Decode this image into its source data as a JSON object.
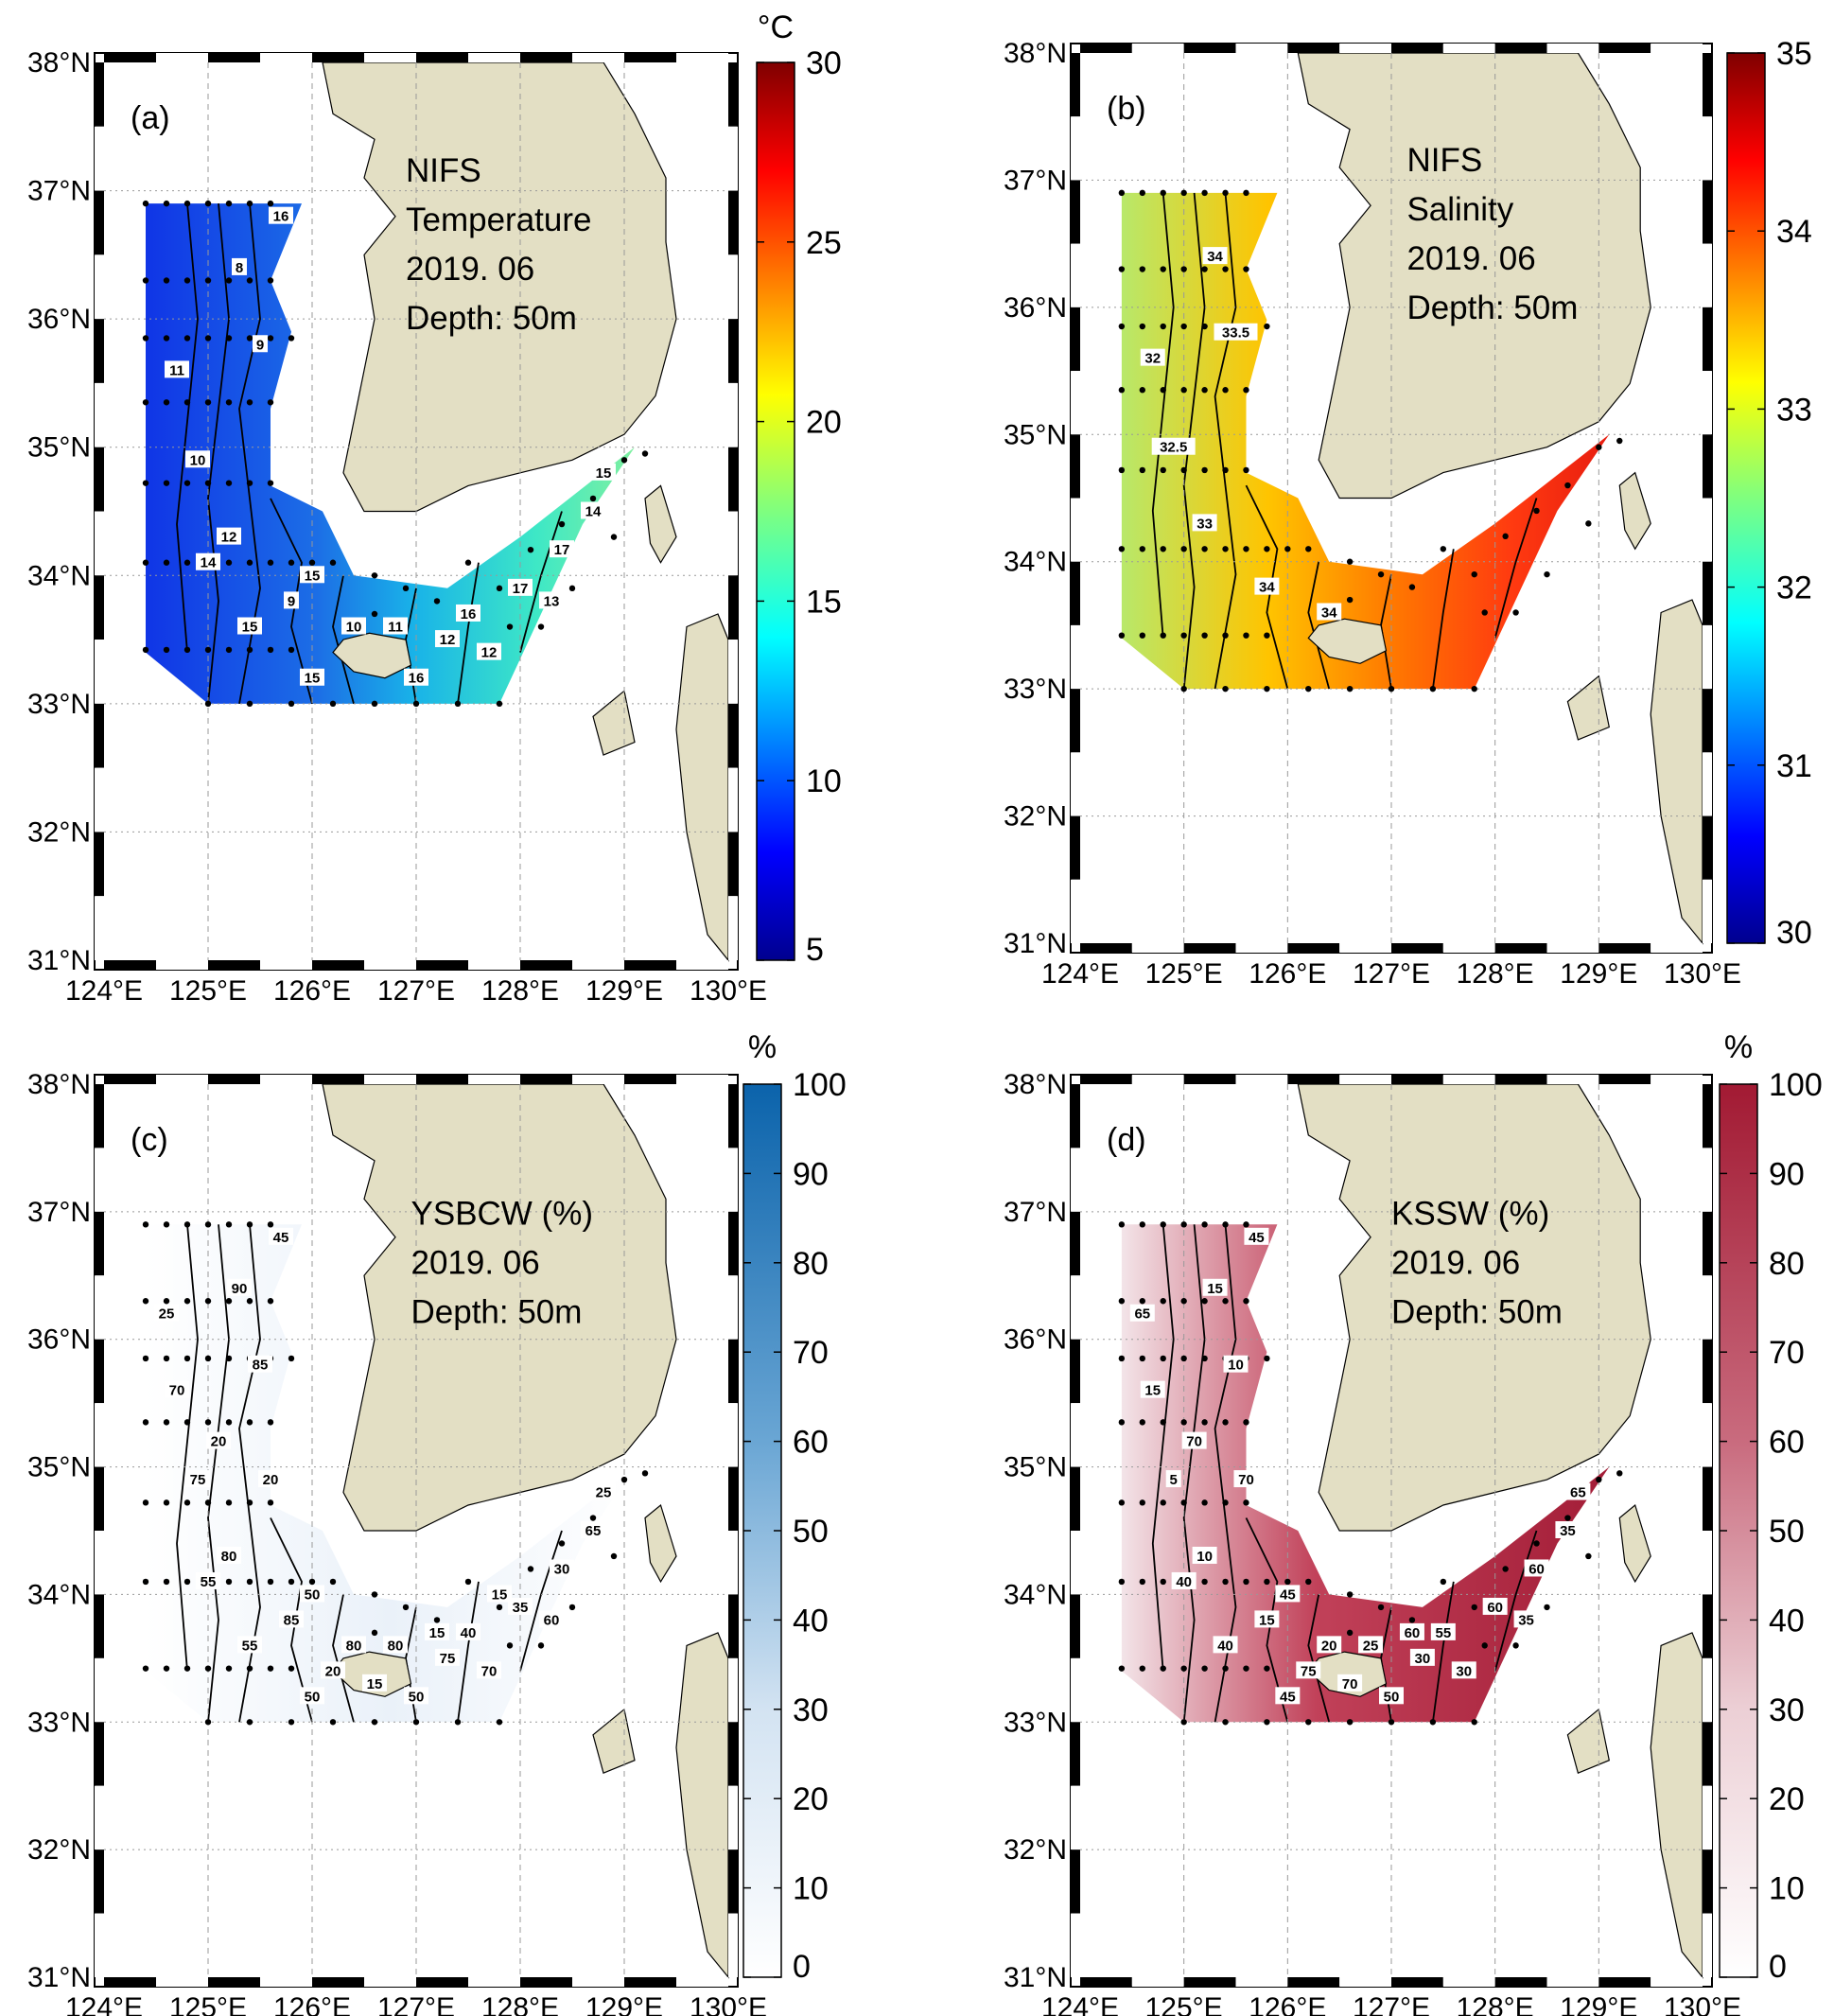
{
  "figure": {
    "lon_labels": [
      "124°E",
      "125°E",
      "126°E",
      "127°E",
      "128°E",
      "129°E",
      "130°E"
    ],
    "lat_labels": [
      "31°N",
      "32°N",
      "33°N",
      "34°N",
      "35°N",
      "36°N",
      "37°N",
      "38°N"
    ],
    "panels": [
      {
        "id": "a",
        "label": "(a)",
        "annotation": [
          "NIFS",
          "Temperature",
          "2019. 06",
          "Depth: 50m"
        ],
        "colorbar": {
          "unit": "°C",
          "ticks": [
            "5",
            "10",
            "15",
            "20",
            "25",
            "30"
          ],
          "colormap": "jet"
        },
        "contour_labels": [
          "11",
          "10",
          "12",
          "9",
          "8",
          "9",
          "10",
          "11",
          "12",
          "12",
          "13",
          "14",
          "14",
          "15",
          "15",
          "16",
          "15",
          "16",
          "16",
          "17",
          "17",
          "15"
        ]
      },
      {
        "id": "b",
        "label": "(b)",
        "annotation": [
          "NIFS",
          "Salinity",
          "2019. 06",
          "Depth: 50m"
        ],
        "colorbar": {
          "unit": "",
          "ticks": [
            "30",
            "31",
            "32",
            "33",
            "34",
            "35"
          ],
          "colormap": "jet"
        },
        "contour_labels": [
          "32",
          "32.5",
          "33",
          "33.5",
          "34",
          "34",
          "34"
        ]
      },
      {
        "id": "c",
        "label": "(c)",
        "annotation": [
          "YSBCW (%)",
          "2019. 06",
          "Depth: 50m"
        ],
        "colorbar": {
          "unit": "%",
          "ticks": [
            "0",
            "10",
            "20",
            "30",
            "40",
            "50",
            "60",
            "70",
            "80",
            "90",
            "100"
          ],
          "colormap": "blues"
        },
        "contour_labels": [
          "70",
          "75",
          "80",
          "85",
          "90",
          "85",
          "80",
          "80",
          "75",
          "70",
          "60",
          "65",
          "55",
          "55",
          "50",
          "45",
          "50",
          "50",
          "40",
          "35",
          "30",
          "25",
          "25",
          "20",
          "20",
          "20",
          "15",
          "15",
          "15"
        ]
      },
      {
        "id": "d",
        "label": "(d)",
        "annotation": [
          "KSSW (%)",
          "2019. 06",
          "Depth: 50m"
        ],
        "colorbar": {
          "unit": "%",
          "ticks": [
            "0",
            "10",
            "20",
            "30",
            "40",
            "50",
            "60",
            "70",
            "80",
            "90",
            "100"
          ],
          "colormap": "reds"
        },
        "contour_labels": [
          "15",
          "5",
          "10",
          "10",
          "15",
          "15",
          "20",
          "25",
          "30",
          "30",
          "35",
          "35",
          "40",
          "40",
          "45",
          "45",
          "45",
          "50",
          "55",
          "60",
          "60",
          "65",
          "65",
          "70",
          "70",
          "75",
          "70",
          "60"
        ]
      }
    ]
  }
}
